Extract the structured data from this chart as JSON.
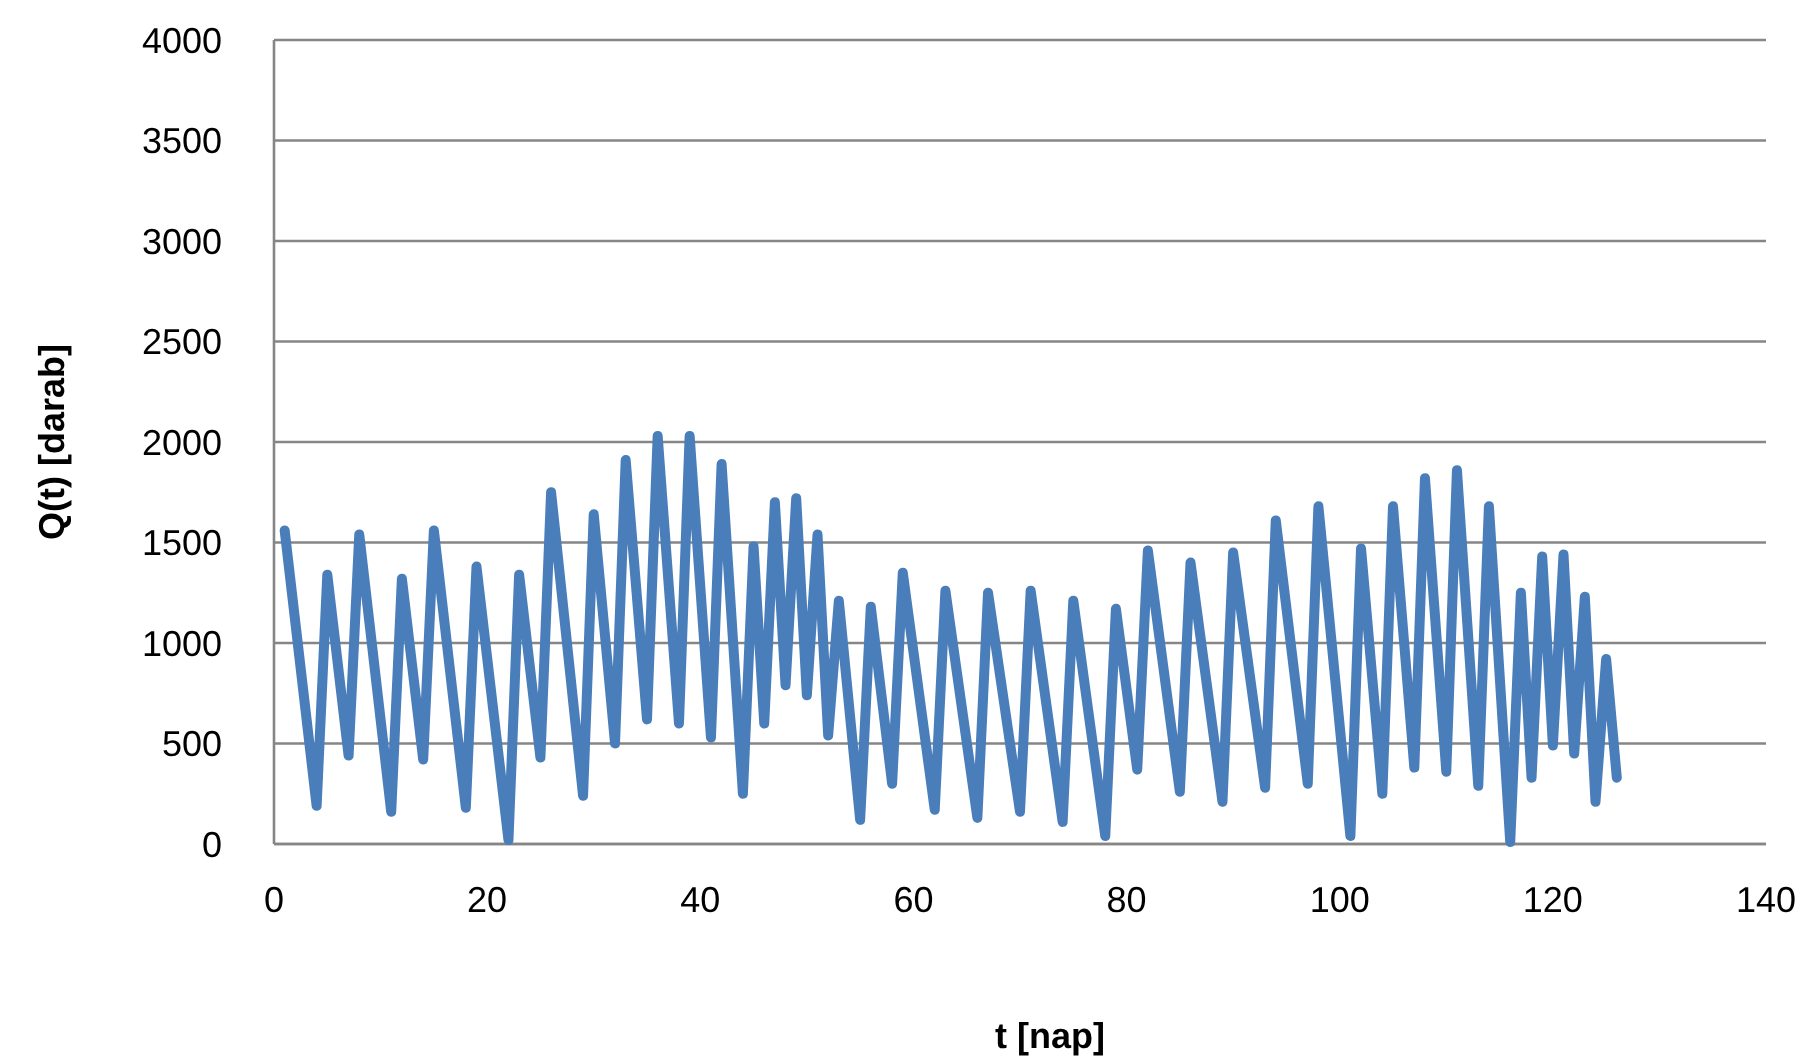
{
  "chart_data": {
    "type": "line",
    "xlabel": "t [nap]",
    "ylabel": "Q(t) [darab]",
    "xlim": [
      0,
      140
    ],
    "xticks": [
      0,
      20,
      40,
      60,
      80,
      100,
      120,
      140
    ],
    "ylim": [
      0,
      4000
    ],
    "yticks": [
      0,
      500,
      1000,
      1500,
      2000,
      2500,
      3000,
      3500,
      4000
    ],
    "grid": "y",
    "marker": "none",
    "line_style": "solid",
    "series": [
      {
        "color": "#4a7ebb",
        "x": [
          1,
          4,
          5,
          7,
          8,
          11,
          12,
          14,
          15,
          18,
          19,
          22,
          23,
          25,
          26,
          29,
          30,
          32,
          33,
          35,
          36,
          38,
          39,
          41,
          42,
          44,
          45,
          46,
          47,
          48,
          49,
          50,
          51,
          52,
          53,
          55,
          56,
          58,
          59,
          62,
          63,
          66,
          67,
          70,
          71,
          74,
          75,
          78,
          79,
          81,
          82,
          85,
          86,
          89,
          90,
          93,
          94,
          97,
          98,
          101,
          102,
          104,
          105,
          107,
          108,
          110,
          111,
          113,
          114,
          116,
          117,
          118,
          119,
          120,
          121,
          122,
          123,
          124,
          125,
          126
        ],
        "values": [
          1560,
          190,
          1340,
          440,
          1540,
          160,
          1320,
          420,
          1560,
          180,
          1380,
          20,
          1340,
          430,
          1750,
          240,
          1640,
          500,
          1910,
          620,
          2030,
          600,
          2030,
          530,
          1890,
          250,
          1480,
          600,
          1700,
          790,
          1720,
          740,
          1540,
          540,
          1210,
          120,
          1180,
          300,
          1350,
          170,
          1260,
          130,
          1250,
          160,
          1260,
          110,
          1210,
          40,
          1170,
          370,
          1460,
          260,
          1400,
          210,
          1450,
          280,
          1610,
          300,
          1680,
          40,
          1470,
          250,
          1680,
          380,
          1820,
          360,
          1860,
          290,
          1680,
          10,
          1250,
          330,
          1430,
          490,
          1440,
          450,
          1230,
          210,
          920,
          330
        ]
      }
    ]
  }
}
